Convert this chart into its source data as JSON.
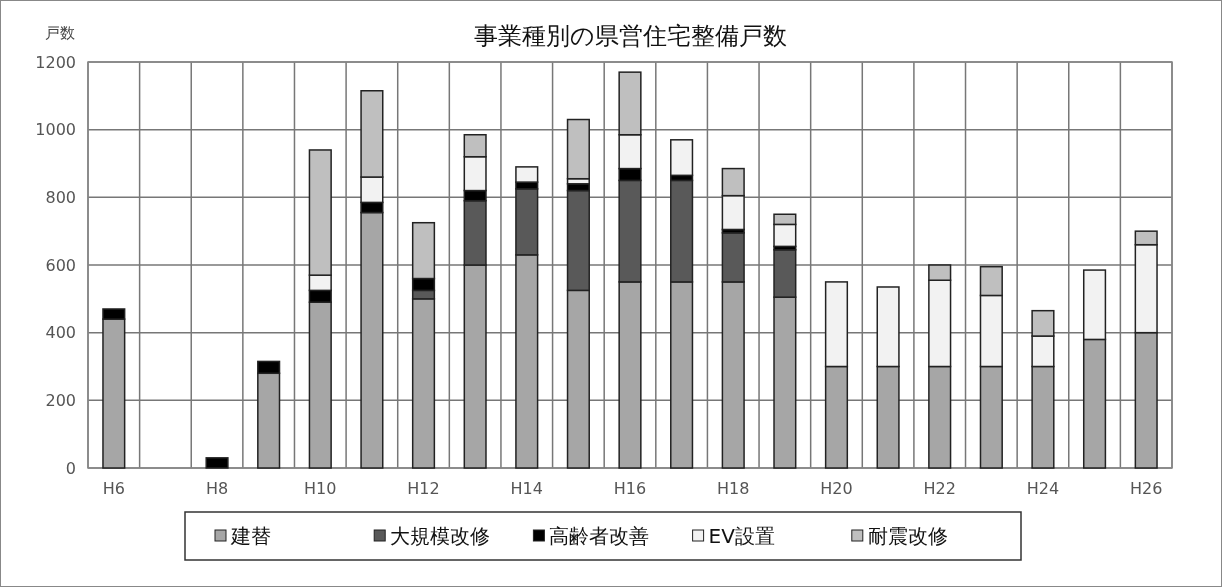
{
  "chart_data": {
    "type": "bar",
    "title": "事業種別の県営住宅整備戸数",
    "ylabel": "戸数",
    "categories": [
      "H6",
      null,
      "H8",
      null,
      "H10",
      null,
      "H12",
      null,
      "H14",
      null,
      "H16",
      null,
      "H18",
      null,
      "H20",
      null,
      "H22",
      null,
      "H24",
      null,
      "H26"
    ],
    "stacked": true,
    "ylim": [
      0,
      1200
    ],
    "yticks": [
      0,
      200,
      400,
      600,
      800,
      1000,
      1200
    ],
    "grid": true,
    "legend": "bottom",
    "series": [
      {
        "name": "建替",
        "color": "#a6a6a6",
        "values": [
          440,
          0,
          0,
          280,
          490,
          755,
          500,
          600,
          630,
          525,
          550,
          550,
          550,
          505,
          300,
          300,
          300,
          300,
          300,
          380,
          400
        ]
      },
      {
        "name": "大規模改修",
        "color": "#595959",
        "values": [
          0,
          0,
          0,
          0,
          0,
          0,
          25,
          190,
          195,
          295,
          300,
          300,
          145,
          140,
          0,
          0,
          0,
          0,
          0,
          0,
          0
        ]
      },
      {
        "name": "高齢者改善",
        "color": "#000000",
        "values": [
          30,
          0,
          30,
          35,
          35,
          30,
          35,
          30,
          20,
          20,
          35,
          15,
          10,
          10,
          0,
          0,
          0,
          0,
          0,
          0,
          0
        ]
      },
      {
        "name": "EV設置",
        "color": "#f2f2f2",
        "values": [
          0,
          0,
          0,
          0,
          45,
          75,
          0,
          100,
          45,
          15,
          100,
          105,
          100,
          65,
          250,
          235,
          255,
          210,
          90,
          205,
          260
        ]
      },
      {
        "name": "耐震改修",
        "color": "#bfbfbf",
        "values": [
          0,
          0,
          0,
          0,
          370,
          255,
          165,
          65,
          0,
          175,
          185,
          0,
          80,
          30,
          0,
          0,
          45,
          85,
          75,
          0,
          40
        ]
      }
    ]
  }
}
